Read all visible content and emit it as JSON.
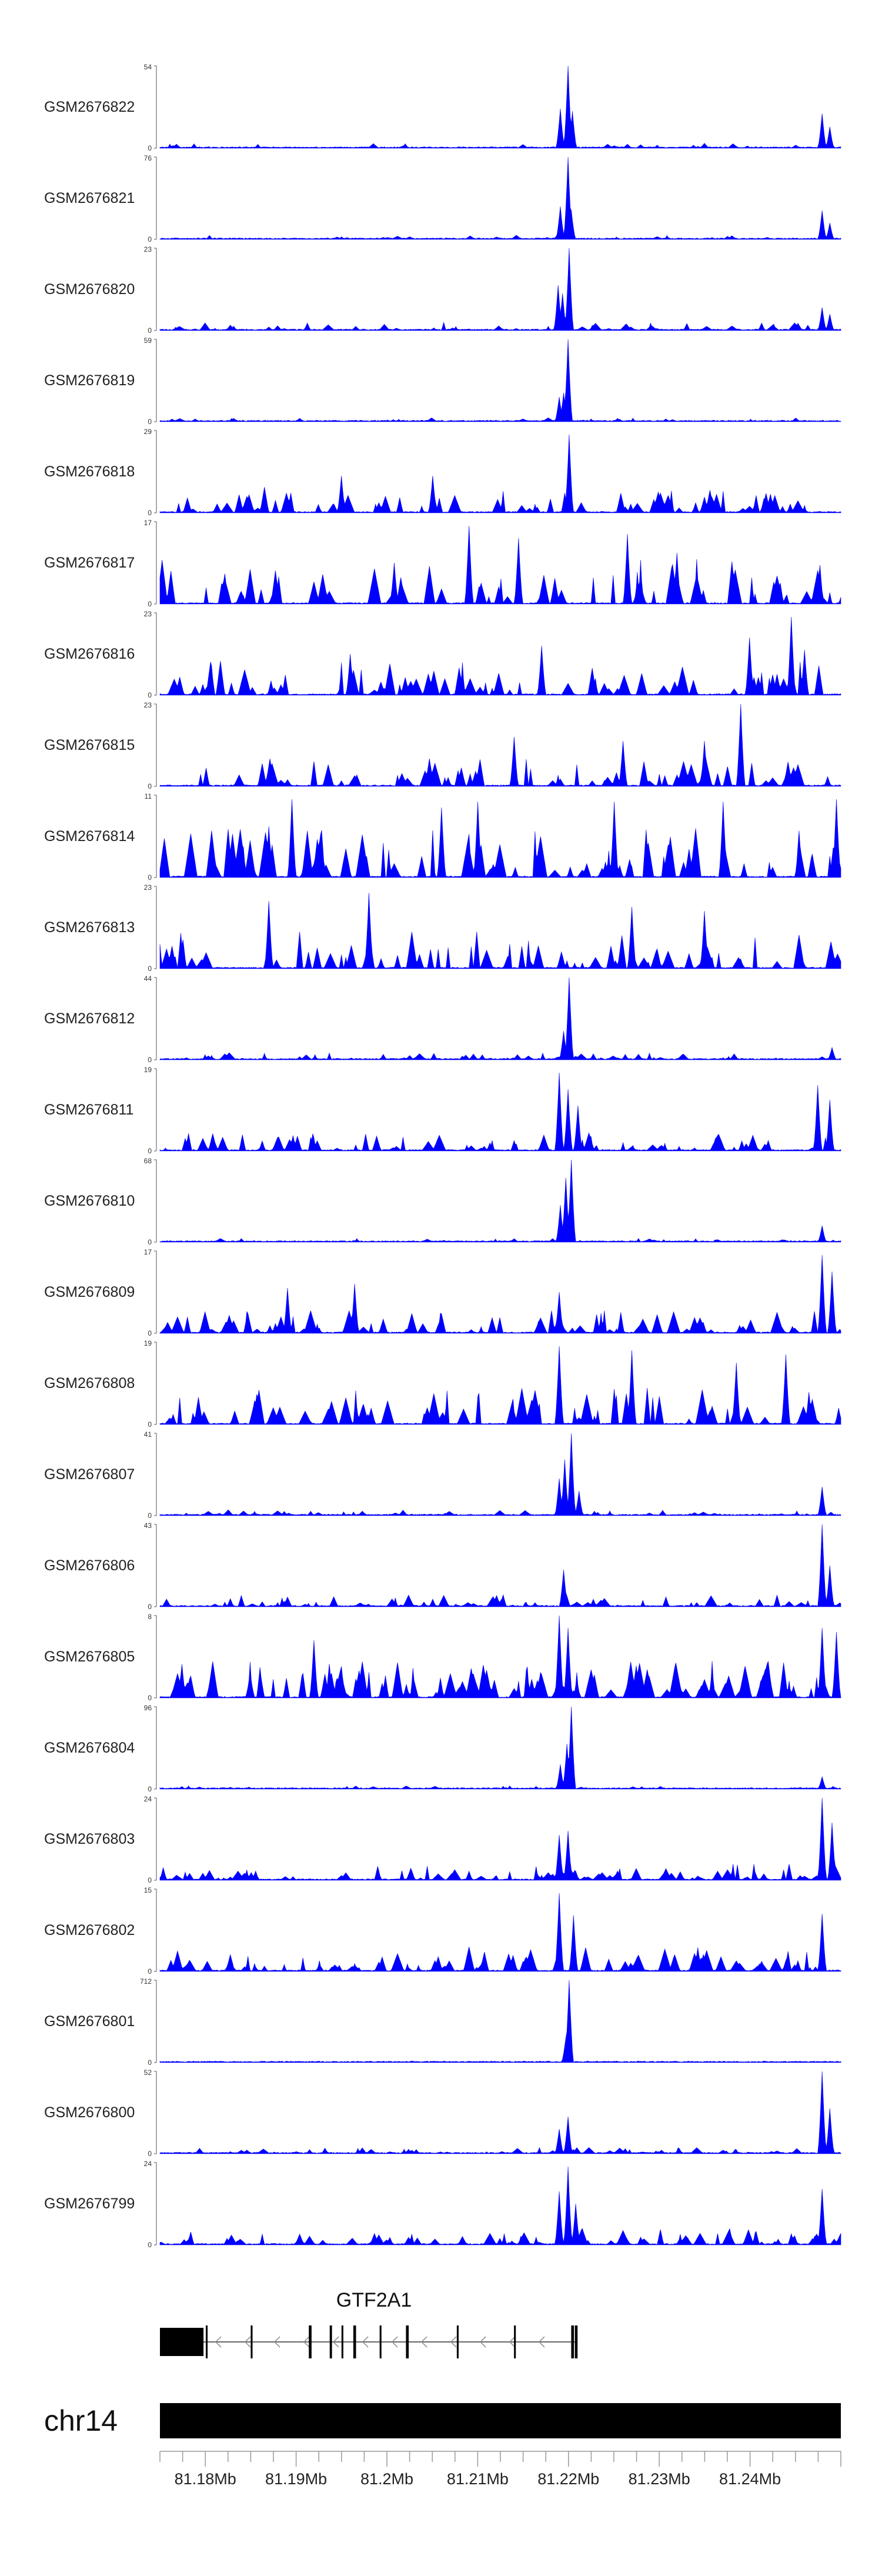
{
  "chart_data": {
    "type": "area",
    "color": "#0000ff",
    "chromosome": "chr14",
    "xlim": [
      81175000,
      81250000
    ],
    "x_ticks": [
      81180000,
      81190000,
      81200000,
      81210000,
      81220000,
      81230000,
      81240000
    ],
    "x_tick_labels": [
      "81.18Mb",
      "81.19Mb",
      "81.2Mb",
      "81.21Mb",
      "81.22Mb",
      "81.23Mb",
      "81.24Mb"
    ],
    "tracks": [
      {
        "name": "GSM2676822",
        "ymax": 54,
        "ymax_label": "54",
        "ymin_label": "0",
        "noise": 0.06,
        "density": 40,
        "seed": 1,
        "peaks": [
          [
            81219100,
            0.48
          ],
          [
            81219900,
            1.0
          ],
          [
            81220400,
            0.45
          ],
          [
            81248000,
            0.42
          ],
          [
            81248800,
            0.26
          ]
        ]
      },
      {
        "name": "GSM2676821",
        "ymax": 76,
        "ymax_label": "76",
        "ymin_label": "0",
        "noise": 0.05,
        "density": 40,
        "seed": 2,
        "peaks": [
          [
            81219100,
            0.4
          ],
          [
            81219900,
            1.0
          ],
          [
            81220300,
            0.35
          ],
          [
            81248000,
            0.35
          ],
          [
            81248800,
            0.2
          ]
        ]
      },
      {
        "name": "GSM2676820",
        "ymax": 23,
        "ymax_label": "23",
        "ymin_label": "0",
        "noise": 0.1,
        "density": 60,
        "seed": 3,
        "peaks": [
          [
            81218900,
            0.55
          ],
          [
            81219300,
            0.45
          ],
          [
            81220100,
            1.0
          ],
          [
            81248000,
            0.28
          ],
          [
            81248800,
            0.2
          ]
        ]
      },
      {
        "name": "GSM2676819",
        "ymax": 59,
        "ymax_label": "59",
        "ymin_label": "0",
        "noise": 0.05,
        "density": 40,
        "seed": 4,
        "peaks": [
          [
            81219000,
            0.3
          ],
          [
            81219500,
            0.35
          ],
          [
            81220000,
            1.0
          ]
        ]
      },
      {
        "name": "GSM2676818",
        "ymax": 29,
        "ymax_label": "29",
        "ymin_label": "0",
        "noise": 0.32,
        "density": 70,
        "seed": 5,
        "peaks": [
          [
            81220100,
            0.95
          ],
          [
            81205000,
            0.45
          ],
          [
            81195000,
            0.45
          ]
        ]
      },
      {
        "name": "GSM2676817",
        "ymax": 17,
        "ymax_label": "17",
        "ymin_label": "0",
        "noise": 0.55,
        "density": 80,
        "seed": 6,
        "peaks": [
          [
            81200800,
            0.5
          ],
          [
            81209000,
            0.95
          ],
          [
            81214500,
            0.8
          ],
          [
            81226500,
            0.85
          ],
          [
            81232000,
            0.62
          ]
        ]
      },
      {
        "name": "GSM2676816",
        "ymax": 23,
        "ymax_label": "23",
        "ymin_label": "0",
        "noise": 0.42,
        "density": 80,
        "seed": 7,
        "peaks": [
          [
            81196000,
            0.5
          ],
          [
            81217000,
            0.6
          ],
          [
            81240000,
            0.7
          ],
          [
            81244500,
            0.95
          ],
          [
            81246000,
            0.55
          ]
        ]
      },
      {
        "name": "GSM2676815",
        "ymax": 23,
        "ymax_label": "23",
        "ymin_label": "0",
        "noise": 0.38,
        "density": 60,
        "seed": 8,
        "peaks": [
          [
            81239000,
            1.0
          ],
          [
            81235000,
            0.55
          ],
          [
            81214000,
            0.6
          ],
          [
            81226000,
            0.55
          ]
        ]
      },
      {
        "name": "GSM2676814",
        "ymax": 11,
        "ymax_label": "11",
        "ymin_label": "0",
        "noise": 0.6,
        "density": 90,
        "seed": 9,
        "peaks": [
          [
            81189500,
            0.95
          ],
          [
            81187000,
            0.62
          ],
          [
            81206000,
            0.85
          ],
          [
            81210000,
            0.92
          ],
          [
            81225000,
            0.92
          ],
          [
            81237000,
            0.92
          ],
          [
            81249500,
            0.95
          ]
        ]
      },
      {
        "name": "GSM2676813",
        "ymax": 23,
        "ymax_label": "23",
        "ymin_label": "0",
        "noise": 0.45,
        "density": 70,
        "seed": 10,
        "peaks": [
          [
            81187000,
            0.82
          ],
          [
            81198000,
            0.92
          ],
          [
            81227000,
            0.75
          ],
          [
            81235000,
            0.7
          ]
        ]
      },
      {
        "name": "GSM2676812",
        "ymax": 44,
        "ymax_label": "44",
        "ymin_label": "0",
        "noise": 0.09,
        "density": 60,
        "seed": 11,
        "peaks": [
          [
            81219500,
            0.35
          ],
          [
            81220100,
            1.0
          ],
          [
            81249000,
            0.15
          ]
        ]
      },
      {
        "name": "GSM2676811",
        "ymax": 19,
        "ymax_label": "19",
        "ymin_label": "0",
        "noise": 0.22,
        "density": 80,
        "seed": 12,
        "peaks": [
          [
            81219000,
            0.95
          ],
          [
            81220000,
            0.75
          ],
          [
            81221000,
            0.55
          ],
          [
            81247500,
            0.8
          ],
          [
            81248800,
            0.62
          ]
        ]
      },
      {
        "name": "GSM2676810",
        "ymax": 68,
        "ymax_label": "68",
        "ymin_label": "0",
        "noise": 0.05,
        "density": 50,
        "seed": 13,
        "peaks": [
          [
            81219100,
            0.45
          ],
          [
            81219700,
            0.78
          ],
          [
            81220300,
            1.0
          ],
          [
            81248000,
            0.2
          ]
        ]
      },
      {
        "name": "GSM2676809",
        "ymax": 17,
        "ymax_label": "17",
        "ymin_label": "0",
        "noise": 0.28,
        "density": 80,
        "seed": 14,
        "peaks": [
          [
            81189000,
            0.55
          ],
          [
            81196500,
            0.6
          ],
          [
            81219000,
            0.5
          ],
          [
            81248000,
            0.95
          ],
          [
            81249000,
            0.75
          ]
        ]
      },
      {
        "name": "GSM2676808",
        "ymax": 19,
        "ymax_label": "19",
        "ymin_label": "0",
        "noise": 0.45,
        "density": 80,
        "seed": 15,
        "peaks": [
          [
            81219000,
            0.95
          ],
          [
            81227000,
            0.9
          ],
          [
            81238500,
            0.75
          ],
          [
            81244000,
            0.85
          ]
        ]
      },
      {
        "name": "GSM2676807",
        "ymax": 41,
        "ymax_label": "41",
        "ymin_label": "0",
        "noise": 0.07,
        "density": 60,
        "seed": 16,
        "peaks": [
          [
            81219000,
            0.45
          ],
          [
            81219600,
            0.68
          ],
          [
            81220300,
            1.0
          ],
          [
            81221200,
            0.3
          ],
          [
            81248000,
            0.35
          ]
        ]
      },
      {
        "name": "GSM2676806",
        "ymax": 43,
        "ymax_label": "43",
        "ymin_label": "0",
        "noise": 0.15,
        "density": 70,
        "seed": 17,
        "peaks": [
          [
            81219500,
            0.45
          ],
          [
            81248000,
            1.0
          ],
          [
            81248800,
            0.5
          ]
        ]
      },
      {
        "name": "GSM2676805",
        "ymax": 8,
        "ymax_label": "8",
        "ymin_label": "0",
        "noise": 0.45,
        "density": 140,
        "seed": 18,
        "peaks": [
          [
            81219000,
            1.0
          ],
          [
            81220000,
            0.85
          ],
          [
            81248000,
            0.85
          ],
          [
            81249500,
            0.8
          ],
          [
            81192000,
            0.7
          ]
        ]
      },
      {
        "name": "GSM2676804",
        "ymax": 96,
        "ymax_label": "96",
        "ymin_label": "0",
        "noise": 0.04,
        "density": 50,
        "seed": 19,
        "peaks": [
          [
            81219100,
            0.3
          ],
          [
            81219800,
            0.55
          ],
          [
            81220300,
            1.0
          ],
          [
            81248000,
            0.15
          ]
        ]
      },
      {
        "name": "GSM2676803",
        "ymax": 24,
        "ymax_label": "24",
        "ymin_label": "0",
        "noise": 0.2,
        "density": 90,
        "seed": 20,
        "peaks": [
          [
            81219000,
            0.55
          ],
          [
            81220000,
            0.6
          ],
          [
            81248000,
            1.0
          ],
          [
            81249000,
            0.7
          ]
        ]
      },
      {
        "name": "GSM2676802",
        "ymax": 15,
        "ymax_label": "15",
        "ymin_label": "0",
        "noise": 0.3,
        "density": 90,
        "seed": 21,
        "peaks": [
          [
            81219000,
            0.95
          ],
          [
            81220500,
            0.68
          ],
          [
            81248000,
            0.7
          ]
        ]
      },
      {
        "name": "GSM2676801",
        "ymax": 712,
        "ymax_label": "712",
        "ymin_label": "0",
        "noise": 0.005,
        "density": 30,
        "seed": 22,
        "peaks": [
          [
            81220100,
            1.0
          ],
          [
            81219700,
            0.3
          ]
        ]
      },
      {
        "name": "GSM2676800",
        "ymax": 52,
        "ymax_label": "52",
        "ymin_label": "0",
        "noise": 0.08,
        "density": 70,
        "seed": 23,
        "peaks": [
          [
            81219000,
            0.3
          ],
          [
            81220000,
            0.45
          ],
          [
            81248000,
            1.0
          ],
          [
            81248800,
            0.55
          ]
        ]
      },
      {
        "name": "GSM2676799",
        "ymax": 24,
        "ymax_label": "24",
        "ymin_label": "0",
        "noise": 0.2,
        "density": 90,
        "seed": 24,
        "peaks": [
          [
            81219000,
            0.65
          ],
          [
            81220000,
            0.95
          ],
          [
            81220800,
            0.5
          ],
          [
            81248000,
            0.68
          ]
        ]
      }
    ],
    "gene": {
      "name": "GTF2A1",
      "strand": "-",
      "start": 81175000,
      "end": 81221000,
      "exons": [
        [
          81175000,
          81179800
        ],
        [
          81180050,
          81180250
        ],
        [
          81185000,
          81185200
        ],
        [
          81191400,
          81191700
        ],
        [
          81193700,
          81193950
        ],
        [
          81195000,
          81195200
        ],
        [
          81196300,
          81196600
        ],
        [
          81199200,
          81199400
        ],
        [
          81202100,
          81202400
        ],
        [
          81207700,
          81207900
        ],
        [
          81214000,
          81214200
        ],
        [
          81220300,
          81220600
        ],
        [
          81220700,
          81221000
        ]
      ]
    }
  }
}
